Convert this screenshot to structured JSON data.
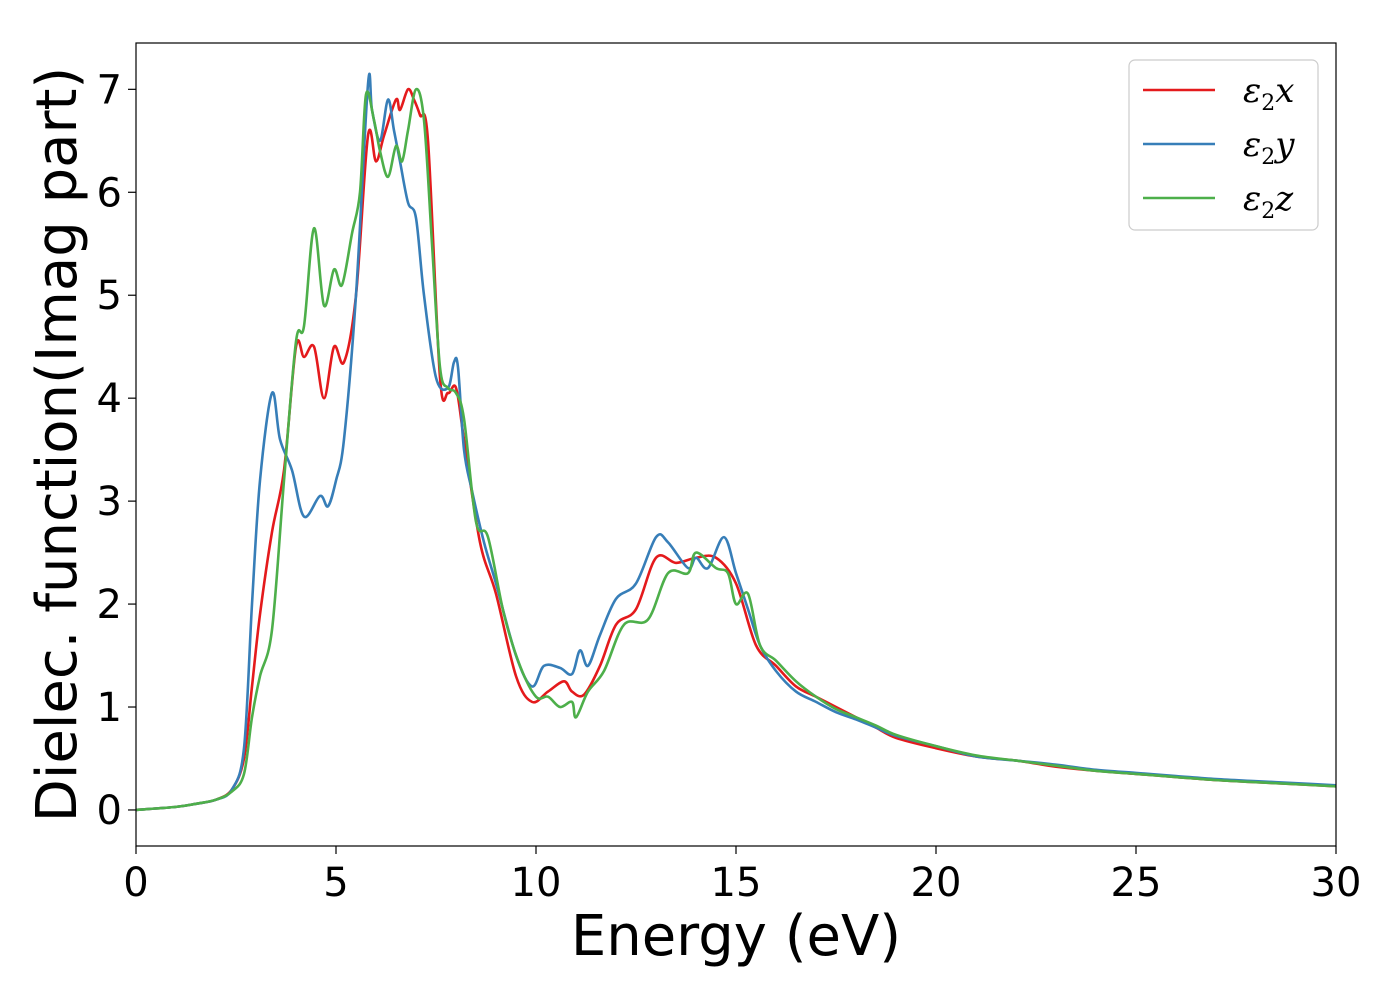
{
  "chart_data": {
    "type": "line",
    "xlabel": "Energy (eV)",
    "ylabel": "Dielec. function(Imag part)",
    "xlim": [
      0,
      30
    ],
    "ylim": [
      -0.35,
      7.45
    ],
    "xticks": [
      0,
      5,
      10,
      15,
      20,
      25,
      30
    ],
    "yticks": [
      0,
      1,
      2,
      3,
      4,
      5,
      6,
      7
    ],
    "grid": false,
    "legend_position": "top-right",
    "series": [
      {
        "name": "ε2x",
        "symbol": "ε",
        "sub": "2",
        "axis": "x",
        "color": "#e41a1c",
        "x": [
          0,
          1,
          1.5,
          2,
          2.4,
          2.7,
          2.9,
          3.1,
          3.4,
          3.7,
          4.0,
          4.2,
          4.45,
          4.7,
          4.95,
          5.2,
          5.5,
          5.8,
          6.0,
          6.2,
          6.5,
          6.6,
          6.8,
          6.95,
          7.1,
          7.3,
          7.6,
          7.8,
          8.0,
          8.2,
          8.6,
          9.0,
          9.5,
          9.9,
          10.3,
          10.7,
          10.9,
          11.2,
          11.6,
          12.0,
          12.5,
          13.0,
          13.5,
          14.0,
          14.5,
          15.0,
          15.5,
          16.0,
          16.5,
          17.0,
          17.5,
          18.0,
          18.5,
          19.0,
          20.0,
          21.0,
          22.0,
          22.5,
          23.0,
          24.0,
          25.0,
          26.0,
          27.0,
          28.0,
          29.0,
          30.0
        ],
        "values": [
          0,
          0.03,
          0.06,
          0.1,
          0.2,
          0.5,
          1.2,
          1.9,
          2.7,
          3.3,
          4.5,
          4.4,
          4.5,
          4.0,
          4.5,
          4.35,
          5.0,
          6.55,
          6.3,
          6.55,
          6.9,
          6.8,
          7.0,
          6.9,
          6.75,
          6.5,
          4.2,
          4.05,
          4.1,
          3.6,
          2.6,
          2.1,
          1.3,
          1.05,
          1.15,
          1.25,
          1.15,
          1.12,
          1.4,
          1.8,
          1.95,
          2.45,
          2.4,
          2.45,
          2.45,
          2.2,
          1.6,
          1.4,
          1.2,
          1.1,
          1.0,
          0.9,
          0.8,
          0.7,
          0.6,
          0.52,
          0.48,
          0.45,
          0.42,
          0.38,
          0.35,
          0.32,
          0.29,
          0.27,
          0.25,
          0.23
        ]
      },
      {
        "name": "ε2y",
        "symbol": "ε",
        "sub": "2",
        "axis": "y",
        "color": "#377eb8",
        "x": [
          0,
          1,
          1.5,
          2,
          2.4,
          2.7,
          2.9,
          3.1,
          3.4,
          3.6,
          3.9,
          4.2,
          4.6,
          4.8,
          5.0,
          5.2,
          5.5,
          5.8,
          5.9,
          6.1,
          6.3,
          6.45,
          6.6,
          6.8,
          7.0,
          7.2,
          7.5,
          7.8,
          7.95,
          8.05,
          8.2,
          8.4,
          8.7,
          9.0,
          9.5,
          9.9,
          10.2,
          10.6,
          10.9,
          11.1,
          11.3,
          11.6,
          12.0,
          12.5,
          13.0,
          13.3,
          13.8,
          14.0,
          14.3,
          14.7,
          15.0,
          15.3,
          15.6,
          16.0,
          16.5,
          17.0,
          17.5,
          18.0,
          18.5,
          19.0,
          20.0,
          21.0,
          22.0,
          23.0,
          24.0,
          25.0,
          26.0,
          27.0,
          28.0,
          29.0,
          30.0
        ],
        "values": [
          0,
          0.03,
          0.06,
          0.1,
          0.2,
          0.6,
          2.0,
          3.2,
          4.05,
          3.6,
          3.3,
          2.85,
          3.05,
          2.95,
          3.2,
          3.6,
          5.0,
          7.05,
          6.8,
          6.5,
          6.9,
          6.6,
          6.3,
          5.9,
          5.75,
          5.0,
          4.2,
          4.1,
          4.35,
          4.3,
          3.5,
          3.1,
          2.6,
          2.2,
          1.5,
          1.2,
          1.4,
          1.38,
          1.32,
          1.55,
          1.4,
          1.7,
          2.05,
          2.2,
          2.65,
          2.6,
          2.35,
          2.45,
          2.35,
          2.65,
          2.3,
          1.95,
          1.6,
          1.35,
          1.15,
          1.05,
          0.95,
          0.88,
          0.8,
          0.72,
          0.62,
          0.52,
          0.48,
          0.44,
          0.39,
          0.36,
          0.33,
          0.3,
          0.28,
          0.26,
          0.24
        ]
      },
      {
        "name": "ε2z",
        "symbol": "ε",
        "sub": "2",
        "axis": "z",
        "color": "#4daf4a",
        "x": [
          0,
          1,
          1.5,
          2,
          2.4,
          2.7,
          2.9,
          3.1,
          3.4,
          3.7,
          4.0,
          4.2,
          4.45,
          4.7,
          4.95,
          5.15,
          5.4,
          5.6,
          5.75,
          5.95,
          6.1,
          6.3,
          6.5,
          6.65,
          6.8,
          7.0,
          7.2,
          7.4,
          7.6,
          7.8,
          8.0,
          8.2,
          8.5,
          8.8,
          9.2,
          9.6,
          10.0,
          10.3,
          10.6,
          10.9,
          11.0,
          11.3,
          11.7,
          12.2,
          12.8,
          13.3,
          13.8,
          14.0,
          14.5,
          14.8,
          15.0,
          15.3,
          15.6,
          16.0,
          16.5,
          17.0,
          17.5,
          18.0,
          18.5,
          19.0,
          20.0,
          21.0,
          22.0,
          23.0,
          24.0,
          25.0,
          26.0,
          27.0,
          28.0,
          29.0,
          30.0
        ],
        "values": [
          0,
          0.03,
          0.06,
          0.1,
          0.18,
          0.35,
          0.9,
          1.3,
          1.75,
          3.2,
          4.55,
          4.7,
          5.65,
          4.9,
          5.25,
          5.1,
          5.6,
          6.0,
          6.95,
          6.7,
          6.4,
          6.15,
          6.45,
          6.3,
          6.6,
          7.0,
          6.7,
          5.5,
          4.3,
          4.1,
          4.05,
          3.8,
          2.8,
          2.65,
          1.9,
          1.4,
          1.1,
          1.1,
          1.0,
          1.05,
          0.9,
          1.15,
          1.35,
          1.8,
          1.85,
          2.3,
          2.3,
          2.5,
          2.35,
          2.3,
          2.0,
          2.1,
          1.6,
          1.45,
          1.25,
          1.1,
          0.98,
          0.9,
          0.82,
          0.73,
          0.62,
          0.53,
          0.48,
          0.43,
          0.38,
          0.35,
          0.32,
          0.29,
          0.27,
          0.25,
          0.23
        ]
      }
    ]
  }
}
